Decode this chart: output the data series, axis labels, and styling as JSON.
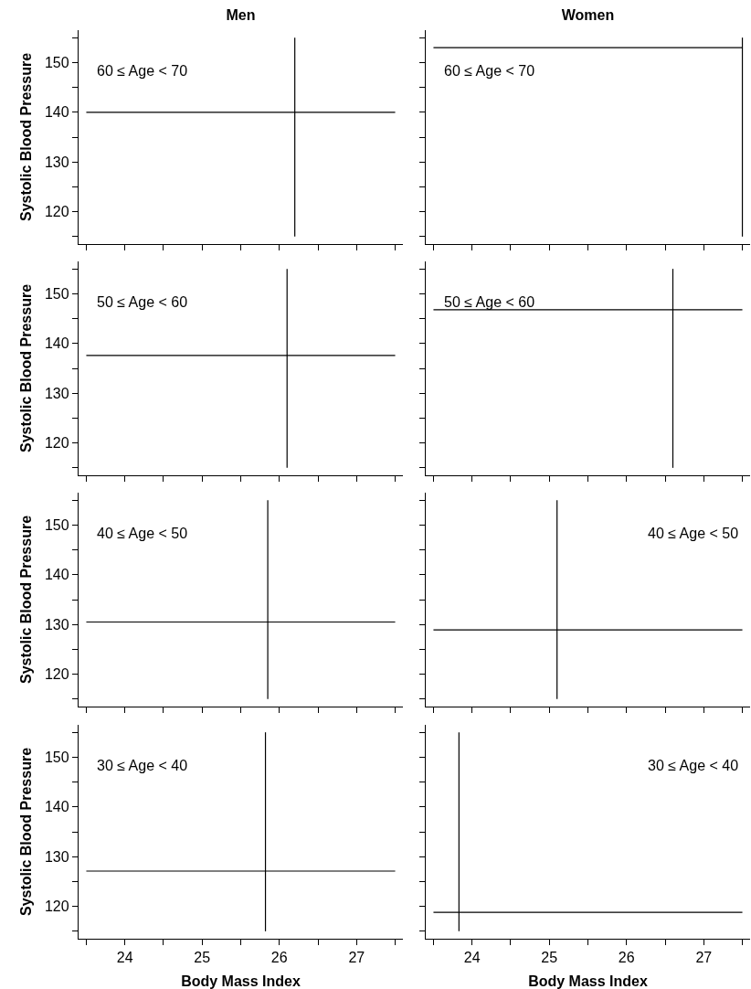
{
  "chart_data": [
    {
      "type": "line",
      "title": "Men",
      "ylabel": "Systolic Blood Pressure",
      "annotations": [
        "60 ≤ Age < 70"
      ],
      "xlim": [
        23.4,
        27.6
      ],
      "ylim": [
        113.5,
        156.5
      ],
      "xticks": [
        {
          "value": 23.5,
          "label": null
        },
        {
          "value": 24,
          "label": null
        },
        {
          "value": 24.5,
          "label": null
        },
        {
          "value": 25,
          "label": null
        },
        {
          "value": 25.5,
          "label": null
        },
        {
          "value": 26,
          "label": null
        },
        {
          "value": 26.5,
          "label": null
        },
        {
          "value": 27,
          "label": null
        },
        {
          "value": 27.5,
          "label": null
        }
      ],
      "yticks": [
        {
          "value": 115,
          "label": null
        },
        120,
        {
          "value": 125,
          "label": null
        },
        130,
        {
          "value": 135,
          "label": null
        },
        140,
        {
          "value": 145,
          "label": null
        },
        150,
        {
          "value": 155,
          "label": null
        }
      ],
      "tick_labels": "y",
      "grid": false,
      "ref_lines": [
        {
          "axis": "x",
          "value": 26.2,
          "color": "#000000"
        },
        {
          "axis": "y",
          "value": 140,
          "color": "#000000"
        }
      ]
    },
    {
      "type": "line",
      "title": "Women",
      "annotations": [
        "60 ≤ Age < 70"
      ],
      "xlim": [
        23.4,
        27.6
      ],
      "ylim": [
        113.5,
        156.5
      ],
      "xticks": [
        {
          "value": 23.5,
          "label": null
        },
        {
          "value": 24,
          "label": null
        },
        {
          "value": 24.5,
          "label": null
        },
        {
          "value": 25,
          "label": null
        },
        {
          "value": 25.5,
          "label": null
        },
        {
          "value": 26,
          "label": null
        },
        {
          "value": 26.5,
          "label": null
        },
        {
          "value": 27,
          "label": null
        },
        {
          "value": 27.5,
          "label": null
        }
      ],
      "yticks": [
        {
          "value": 115,
          "label": null
        },
        {
          "value": 120,
          "label": null
        },
        {
          "value": 125,
          "label": null
        },
        {
          "value": 130,
          "label": null
        },
        {
          "value": 135,
          "label": null
        },
        {
          "value": 140,
          "label": null
        },
        {
          "value": 145,
          "label": null
        },
        {
          "value": 150,
          "label": null
        },
        {
          "value": 155,
          "label": null
        }
      ],
      "tick_labels": false,
      "grid": false,
      "ref_lines": [
        {
          "axis": "x",
          "value": 27.5,
          "color": "#000000"
        },
        {
          "axis": "y",
          "value": 153,
          "color": "#000000"
        }
      ]
    },
    {
      "type": "line",
      "ylabel": "Systolic Blood Pressure",
      "annotations": [
        "50 ≤ Age < 60"
      ],
      "xlim": [
        23.4,
        27.6
      ],
      "ylim": [
        113.5,
        156.5
      ],
      "xticks": [
        {
          "value": 23.5,
          "label": null
        },
        {
          "value": 24,
          "label": null
        },
        {
          "value": 24.5,
          "label": null
        },
        {
          "value": 25,
          "label": null
        },
        {
          "value": 25.5,
          "label": null
        },
        {
          "value": 26,
          "label": null
        },
        {
          "value": 26.5,
          "label": null
        },
        {
          "value": 27,
          "label": null
        },
        {
          "value": 27.5,
          "label": null
        }
      ],
      "yticks": [
        {
          "value": 115,
          "label": null
        },
        120,
        {
          "value": 125,
          "label": null
        },
        130,
        {
          "value": 135,
          "label": null
        },
        140,
        {
          "value": 145,
          "label": null
        },
        150,
        {
          "value": 155,
          "label": null
        }
      ],
      "tick_labels": "y",
      "grid": false,
      "ref_lines": [
        {
          "axis": "x",
          "value": 26.1,
          "color": "#000000"
        },
        {
          "axis": "y",
          "value": 137.6,
          "color": "#000000"
        }
      ]
    },
    {
      "type": "line",
      "annotations": [
        "50 ≤ Age < 60"
      ],
      "xlim": [
        23.4,
        27.6
      ],
      "ylim": [
        113.5,
        156.5
      ],
      "xticks": [
        {
          "value": 23.5,
          "label": null
        },
        {
          "value": 24,
          "label": null
        },
        {
          "value": 24.5,
          "label": null
        },
        {
          "value": 25,
          "label": null
        },
        {
          "value": 25.5,
          "label": null
        },
        {
          "value": 26,
          "label": null
        },
        {
          "value": 26.5,
          "label": null
        },
        {
          "value": 27,
          "label": null
        },
        {
          "value": 27.5,
          "label": null
        }
      ],
      "yticks": [
        {
          "value": 115,
          "label": null
        },
        {
          "value": 120,
          "label": null
        },
        {
          "value": 125,
          "label": null
        },
        {
          "value": 130,
          "label": null
        },
        {
          "value": 135,
          "label": null
        },
        {
          "value": 140,
          "label": null
        },
        {
          "value": 145,
          "label": null
        },
        {
          "value": 150,
          "label": null
        },
        {
          "value": 155,
          "label": null
        }
      ],
      "tick_labels": false,
      "grid": false,
      "ref_lines": [
        {
          "axis": "x",
          "value": 26.6,
          "color": "#000000"
        },
        {
          "axis": "y",
          "value": 146.8,
          "color": "#000000"
        }
      ]
    },
    {
      "type": "line",
      "ylabel": "Systolic Blood Pressure",
      "annotations": [
        "40 ≤ Age < 50"
      ],
      "xlim": [
        23.4,
        27.6
      ],
      "ylim": [
        113.5,
        156.5
      ],
      "xticks": [
        {
          "value": 23.5,
          "label": null
        },
        {
          "value": 24,
          "label": null
        },
        {
          "value": 24.5,
          "label": null
        },
        {
          "value": 25,
          "label": null
        },
        {
          "value": 25.5,
          "label": null
        },
        {
          "value": 26,
          "label": null
        },
        {
          "value": 26.5,
          "label": null
        },
        {
          "value": 27,
          "label": null
        },
        {
          "value": 27.5,
          "label": null
        }
      ],
      "yticks": [
        {
          "value": 115,
          "label": null
        },
        120,
        {
          "value": 125,
          "label": null
        },
        130,
        {
          "value": 135,
          "label": null
        },
        140,
        {
          "value": 145,
          "label": null
        },
        150,
        {
          "value": 155,
          "label": null
        }
      ],
      "tick_labels": "y",
      "grid": false,
      "ref_lines": [
        {
          "axis": "x",
          "value": 25.85,
          "color": "#000000"
        },
        {
          "axis": "y",
          "value": 130.5,
          "color": "#000000"
        }
      ]
    },
    {
      "type": "line",
      "annotations": [
        "40 ≤ Age < 50"
      ],
      "xlim": [
        23.4,
        27.6
      ],
      "ylim": [
        113.5,
        156.5
      ],
      "xticks": [
        {
          "value": 23.5,
          "label": null
        },
        {
          "value": 24,
          "label": null
        },
        {
          "value": 24.5,
          "label": null
        },
        {
          "value": 25,
          "label": null
        },
        {
          "value": 25.5,
          "label": null
        },
        {
          "value": 26,
          "label": null
        },
        {
          "value": 26.5,
          "label": null
        },
        {
          "value": 27,
          "label": null
        },
        {
          "value": 27.5,
          "label": null
        }
      ],
      "yticks": [
        {
          "value": 115,
          "label": null
        },
        {
          "value": 120,
          "label": null
        },
        {
          "value": 125,
          "label": null
        },
        {
          "value": 130,
          "label": null
        },
        {
          "value": 135,
          "label": null
        },
        {
          "value": 140,
          "label": null
        },
        {
          "value": 145,
          "label": null
        },
        {
          "value": 150,
          "label": null
        },
        {
          "value": 155,
          "label": null
        }
      ],
      "tick_labels": false,
      "grid": false,
      "ref_lines": [
        {
          "axis": "x",
          "value": 25.1,
          "color": "#000000"
        },
        {
          "axis": "y",
          "value": 128.9,
          "color": "#000000"
        }
      ]
    },
    {
      "type": "line",
      "ylabel": "Systolic Blood Pressure",
      "xlabel": "Body Mass Index",
      "annotations": [
        "30 ≤ Age < 40"
      ],
      "xlim": [
        23.4,
        27.6
      ],
      "ylim": [
        113.5,
        156.5
      ],
      "xticks": [
        {
          "value": 23.5,
          "label": null
        },
        24,
        {
          "value": 24.5,
          "label": null
        },
        25,
        {
          "value": 25.5,
          "label": null
        },
        26,
        {
          "value": 26.5,
          "label": null
        },
        27,
        {
          "value": 27.5,
          "label": null
        }
      ],
      "yticks": [
        {
          "value": 115,
          "label": null
        },
        120,
        {
          "value": 125,
          "label": null
        },
        130,
        {
          "value": 135,
          "label": null
        },
        140,
        {
          "value": 145,
          "label": null
        },
        150,
        {
          "value": 155,
          "label": null
        }
      ],
      "grid": false,
      "ref_lines": [
        {
          "axis": "x",
          "value": 25.82,
          "color": "#000000"
        },
        {
          "axis": "y",
          "value": 127.1,
          "color": "#000000"
        }
      ]
    },
    {
      "type": "line",
      "xlabel": "Body Mass Index",
      "annotations": [
        "30 ≤ Age < 40"
      ],
      "xlim": [
        23.4,
        27.6
      ],
      "ylim": [
        113.5,
        156.5
      ],
      "xticks": [
        {
          "value": 23.5,
          "label": null
        },
        24,
        {
          "value": 24.5,
          "label": null
        },
        25,
        {
          "value": 25.5,
          "label": null
        },
        26,
        {
          "value": 26.5,
          "label": null
        },
        27,
        {
          "value": 27.5,
          "label": null
        }
      ],
      "yticks": [
        {
          "value": 115,
          "label": null
        },
        {
          "value": 120,
          "label": null
        },
        {
          "value": 125,
          "label": null
        },
        {
          "value": 130,
          "label": null
        },
        {
          "value": 135,
          "label": null
        },
        {
          "value": 140,
          "label": null
        },
        {
          "value": 145,
          "label": null
        },
        {
          "value": 150,
          "label": null
        },
        {
          "value": 155,
          "label": null
        }
      ],
      "tick_labels": "x",
      "grid": false,
      "ref_lines": [
        {
          "axis": "x",
          "value": 23.83,
          "color": "#000000"
        },
        {
          "axis": "y",
          "value": 118.8,
          "color": "#000000"
        }
      ]
    }
  ]
}
